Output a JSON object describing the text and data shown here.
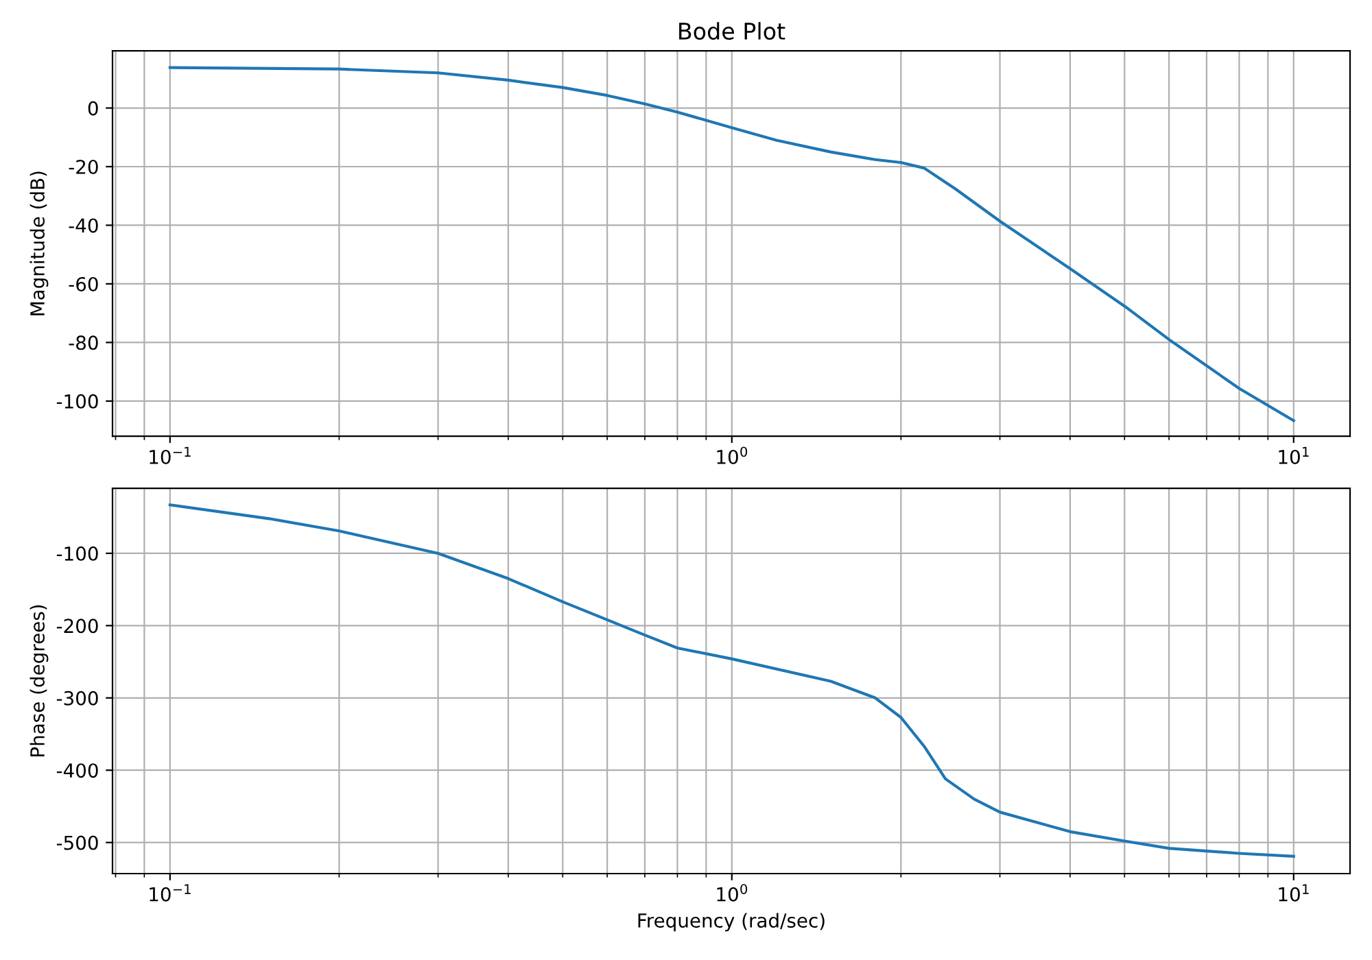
{
  "chart_data": [
    {
      "type": "line",
      "title": "Bode Plot",
      "ylabel": "Magnitude (dB)",
      "log": "x",
      "grid": true,
      "xlim": [
        0.079,
        12.6
      ],
      "ylim": [
        -112,
        19.5
      ],
      "xticks": [
        {
          "value": 0.1,
          "label": "10$^{−1}$"
        },
        {
          "value": 1,
          "label": "10$^{0}$"
        },
        {
          "value": 10,
          "label": "10$^{1}$"
        }
      ],
      "yticks": [
        -100,
        -80,
        -60,
        -40,
        -20,
        0
      ],
      "series": [
        {
          "color": "#1f77b4",
          "x": [
            0.1,
            0.2,
            0.3,
            0.4,
            0.5,
            0.6,
            0.7,
            0.8,
            1.0,
            1.2,
            1.5,
            1.8,
            2.0,
            2.2,
            2.5,
            3,
            4,
            5,
            6,
            8,
            10
          ],
          "values": [
            13.8,
            13.3,
            12,
            9.5,
            7,
            4.3,
            1.4,
            -1.4,
            -6.7,
            -11,
            -15,
            -17.6,
            -18.6,
            -20.5,
            -27.6,
            -38.6,
            -54.8,
            -67.6,
            -79,
            -95.7,
            -106.7
          ]
        }
      ]
    },
    {
      "type": "line",
      "xlabel": "Frequency (rad/sec)",
      "ylabel": "Phase (degrees)",
      "log": "x",
      "grid": true,
      "xlim": [
        0.079,
        12.6
      ],
      "ylim": [
        -543,
        -10
      ],
      "xticks": [
        {
          "value": 0.1,
          "label": "10$^{−1}$"
        },
        {
          "value": 1,
          "label": "10$^{0}$"
        },
        {
          "value": 10,
          "label": "10$^{1}$"
        }
      ],
      "yticks": [
        -500,
        -400,
        -300,
        -200,
        -100
      ],
      "series": [
        {
          "color": "#1f77b4",
          "x": [
            0.1,
            0.15,
            0.2,
            0.3,
            0.4,
            0.5,
            0.6,
            0.7,
            0.8,
            1.0,
            1.5,
            1.8,
            2.0,
            2.2,
            2.4,
            2.7,
            3,
            4,
            5,
            6,
            8,
            10
          ],
          "values": [
            -33,
            -52,
            -69,
            -100,
            -135,
            -167,
            -192,
            -213,
            -231,
            -246,
            -277,
            -300,
            -327,
            -367,
            -412,
            -440,
            -458,
            -485,
            -498,
            -508,
            -515,
            -519
          ]
        }
      ]
    }
  ]
}
